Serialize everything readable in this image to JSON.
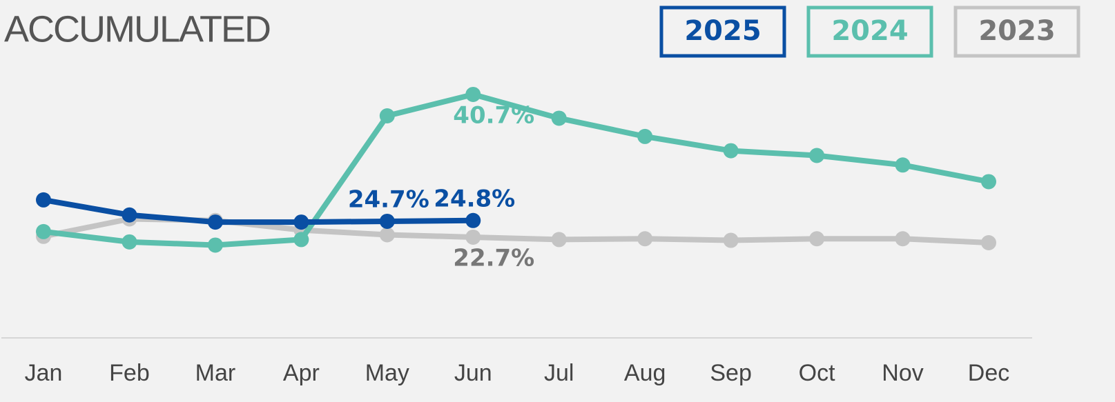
{
  "chart_data": {
    "type": "line",
    "title": "ACCUMULATED",
    "categories": [
      "Jan",
      "Feb",
      "Mar",
      "Apr",
      "May",
      "Jun",
      "Jul",
      "Aug",
      "Sep",
      "Oct",
      "Nov",
      "Dec"
    ],
    "ylim": [
      10,
      45
    ],
    "legend": "top-right",
    "series": [
      {
        "name": "2025",
        "color": "#0a4fa3",
        "values": [
          27.4,
          25.5,
          24.6,
          24.6,
          24.7,
          24.8,
          null,
          null,
          null,
          null,
          null,
          null
        ],
        "value_labels": [
          null,
          null,
          null,
          null,
          "24.7%",
          "24.8%",
          null,
          null,
          null,
          null,
          null,
          null
        ]
      },
      {
        "name": "2024",
        "color": "#5bbfad",
        "values": [
          23.4,
          22.1,
          21.7,
          22.4,
          38.0,
          40.7,
          37.7,
          35.4,
          33.6,
          33.0,
          31.8,
          29.7
        ],
        "value_labels": [
          null,
          null,
          null,
          null,
          null,
          "40.7%",
          null,
          null,
          null,
          null,
          null,
          null
        ]
      },
      {
        "name": "2023",
        "color": "#c4c4c4",
        "values": [
          22.8,
          25.0,
          24.8,
          23.6,
          23.0,
          22.7,
          22.4,
          22.5,
          22.3,
          22.5,
          22.5,
          22.0
        ],
        "value_labels": [
          null,
          null,
          null,
          null,
          null,
          "22.7%",
          null,
          null,
          null,
          null,
          null,
          null
        ]
      }
    ]
  }
}
